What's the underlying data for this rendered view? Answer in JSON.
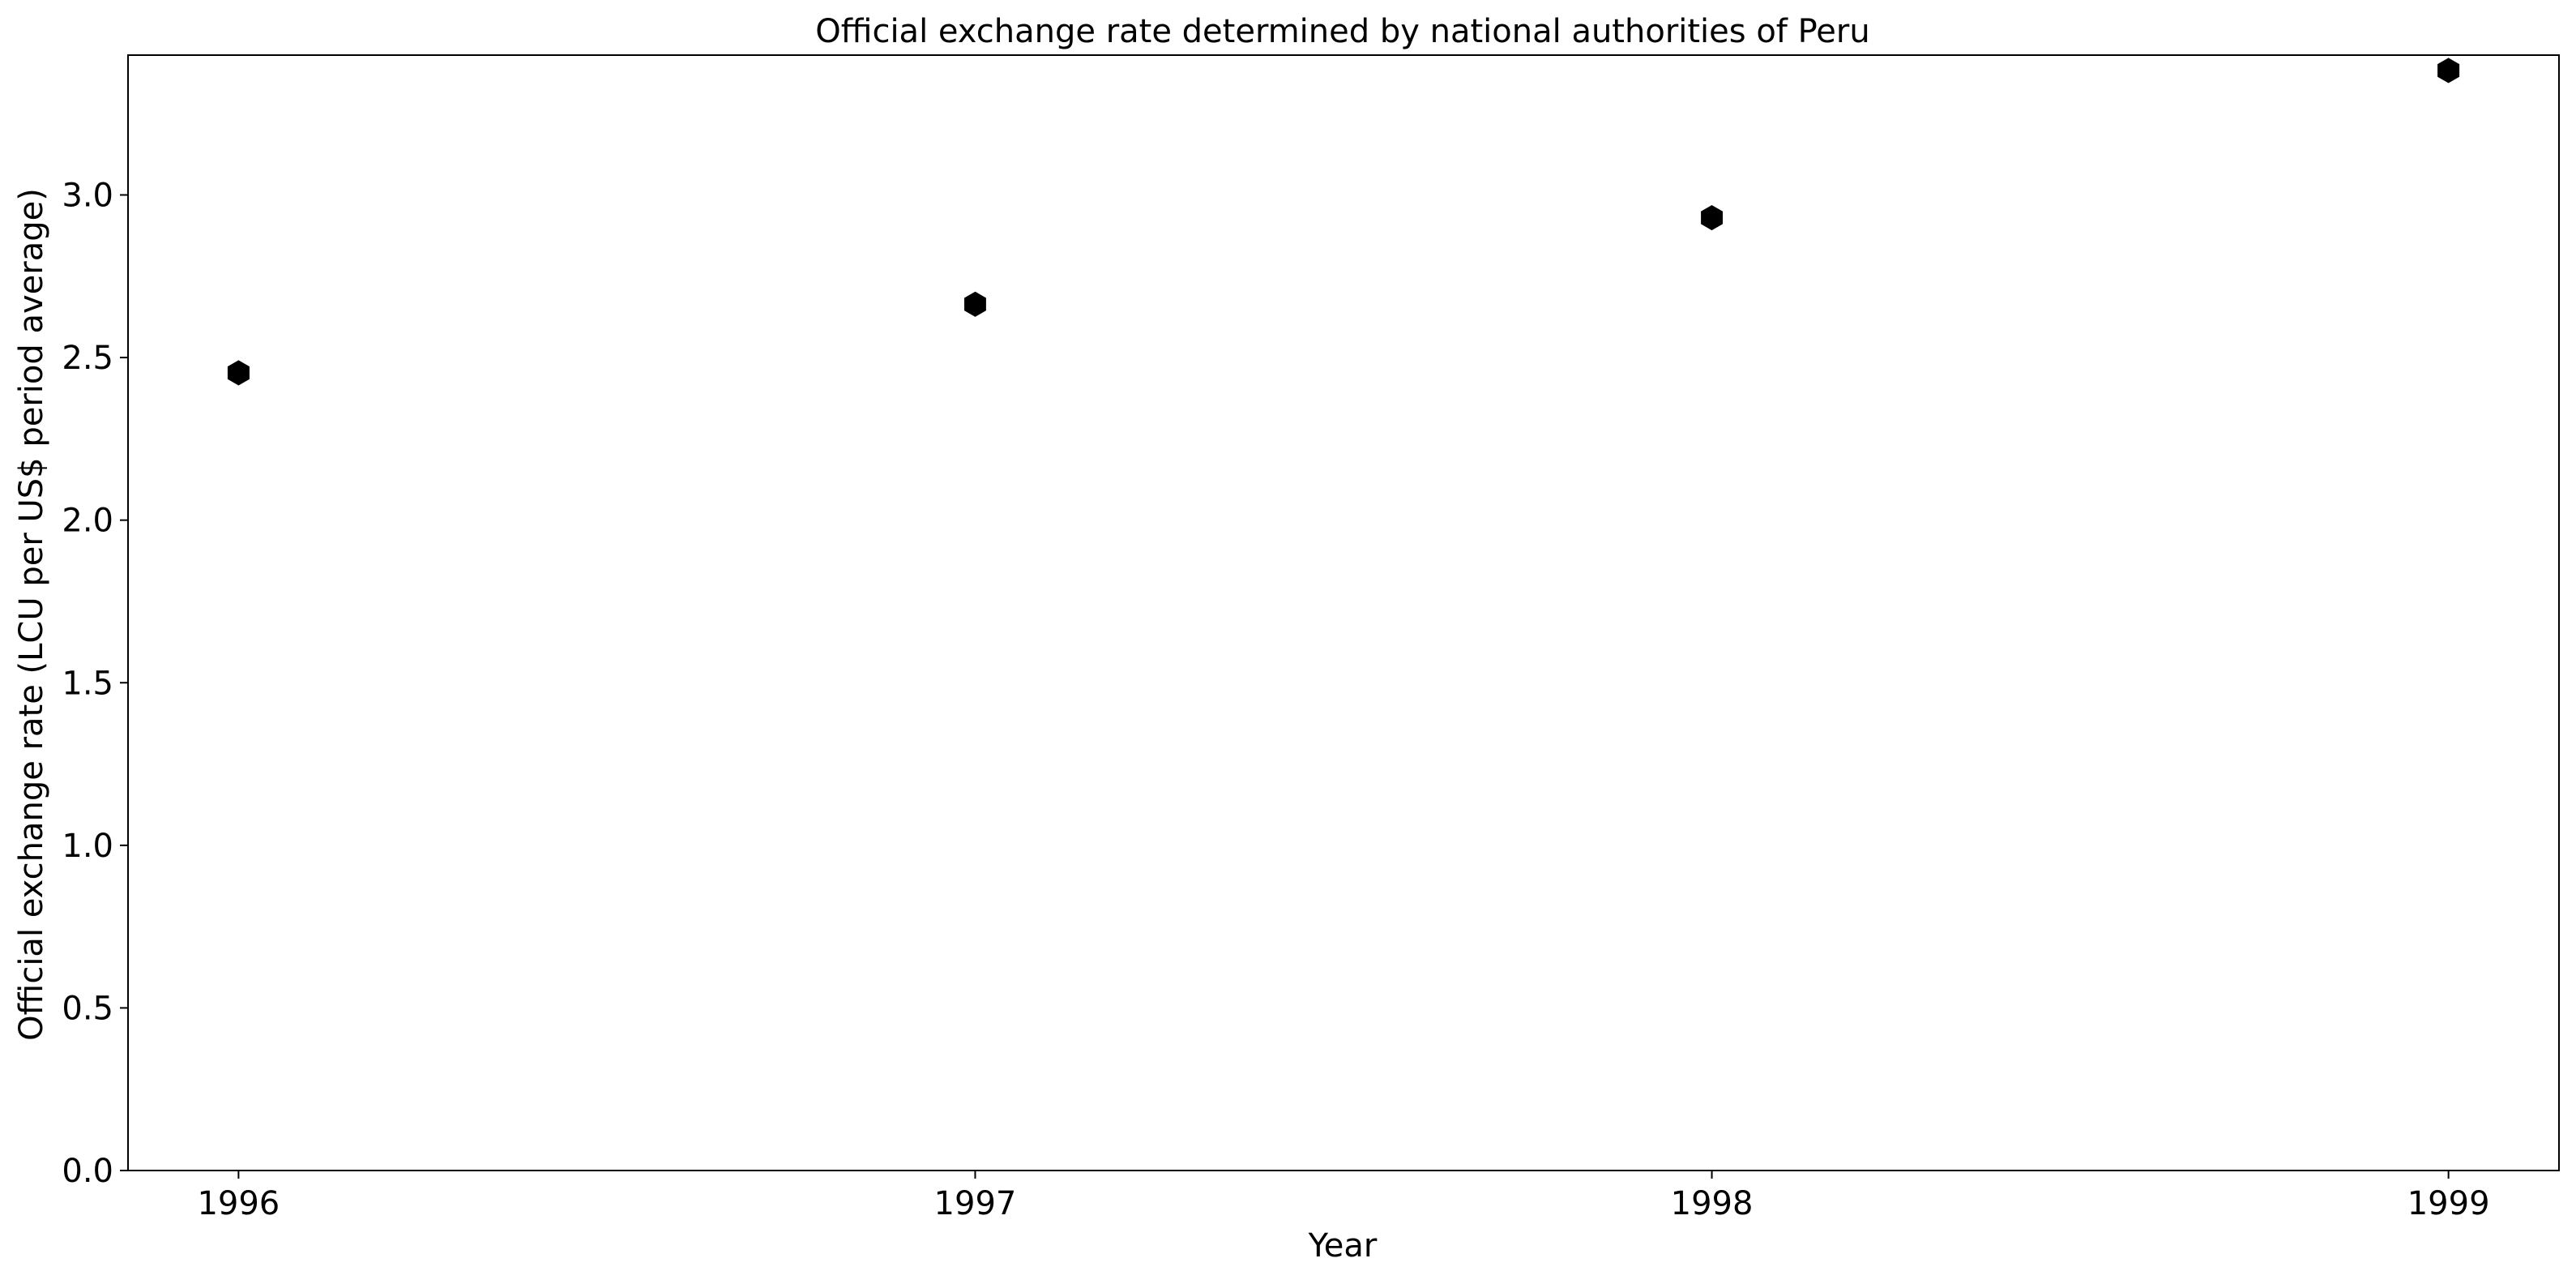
{
  "chart_data": {
    "type": "scatter",
    "title": "Official exchange rate determined by national authorities of Peru",
    "xlabel": "Year",
    "ylabel": "Official exchange rate (LCU per US$ period average)",
    "x": [
      1996,
      1997,
      1998,
      1999
    ],
    "series": [
      {
        "values": [
          2.453,
          2.664,
          2.93,
          3.383
        ]
      }
    ],
    "xlim": [
      1995.85,
      1999.15
    ],
    "ylim": [
      0,
      3.43
    ],
    "xticks": [
      "1996",
      "1997",
      "1998",
      "1999"
    ],
    "yticks": [
      "0.0",
      "0.5",
      "1.0",
      "1.5",
      "2.0",
      "2.5",
      "3.0"
    ],
    "grid": false,
    "marker": "hexagon",
    "marker_color": "#000000"
  }
}
